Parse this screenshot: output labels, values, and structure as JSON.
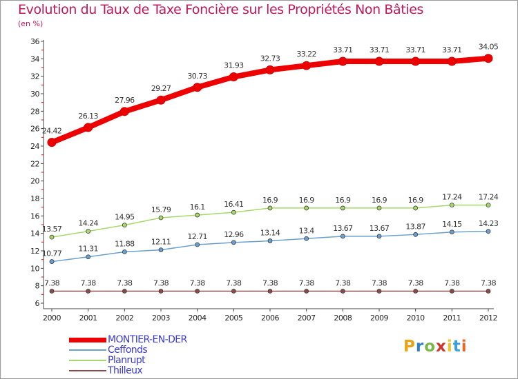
{
  "title": "Evolution du Taux de Taxe Foncière sur les Propriétés Non Bâties",
  "unit_label": "(en %)",
  "logo": {
    "text": "Proxiti",
    "colors": [
      "#e8a317",
      "#2f7fc1",
      "#7ab648",
      "#d0362c",
      "#f2c230",
      "#3aa0d8",
      "#e46a2a"
    ]
  },
  "chart_data": {
    "type": "line",
    "title": "Evolution du Taux de Taxe Foncière sur les Propriétés Non Bâties",
    "ylabel": "(en %)",
    "xlabel": "",
    "ylim": [
      6,
      36
    ],
    "yticks": [
      6,
      8,
      10,
      12,
      14,
      16,
      18,
      20,
      22,
      24,
      26,
      28,
      30,
      32,
      34,
      36
    ],
    "grid": false,
    "legend_position": "bottom-left",
    "categories": [
      "2000",
      "2001",
      "2002",
      "2003",
      "2004",
      "2005",
      "2006",
      "2007",
      "2008",
      "2009",
      "2010",
      "2011",
      "2012"
    ],
    "series": [
      {
        "name": "MONTIER-EN-DER",
        "color": "#ee0000",
        "values": [
          24.42,
          26.13,
          27.96,
          29.27,
          30.73,
          31.93,
          32.73,
          33.22,
          33.71,
          33.71,
          33.71,
          33.71,
          34.05
        ],
        "labels": [
          "24.42",
          "26.13",
          "27.96",
          "29.27",
          "30.73",
          "31.93",
          "32.73",
          "33.22",
          "33.71",
          "33.71",
          "33.71",
          "33.71",
          "34.05"
        ]
      },
      {
        "name": "Ceffonds",
        "color": "#6a9fcf",
        "values": [
          10.77,
          11.31,
          11.88,
          12.11,
          12.71,
          12.96,
          13.14,
          13.4,
          13.67,
          13.67,
          13.87,
          14.15,
          14.23
        ],
        "labels": [
          "10.77",
          "11.31",
          "11.88",
          "12.11",
          "12.71",
          "12.96",
          "13.14",
          "13.4",
          "13.67",
          "13.67",
          "13.87",
          "14.15",
          "14.23"
        ]
      },
      {
        "name": "Planrupt",
        "color": "#a6d96a",
        "values": [
          13.57,
          14.24,
          14.95,
          15.79,
          16.1,
          16.41,
          16.9,
          16.9,
          16.9,
          16.9,
          16.9,
          17.24,
          17.24
        ],
        "labels": [
          "13.57",
          "14.24",
          "14.95",
          "15.79",
          "16.1",
          "16.41",
          "16.9",
          "16.9",
          "16.9",
          "16.9",
          "16.9",
          "17.24",
          "17.24"
        ]
      },
      {
        "name": "Thilleux",
        "color": "#8b4a4a",
        "values": [
          7.38,
          7.38,
          7.38,
          7.38,
          7.38,
          7.38,
          7.38,
          7.38,
          7.38,
          7.38,
          7.38,
          7.38,
          7.38
        ],
        "labels": [
          "7.38",
          "7.38",
          "7.38",
          "7.38",
          "7.38",
          "7.38",
          "7.38",
          "7.38",
          "7.38",
          "7.38",
          "7.38",
          "7.38",
          "7.38"
        ]
      }
    ]
  }
}
